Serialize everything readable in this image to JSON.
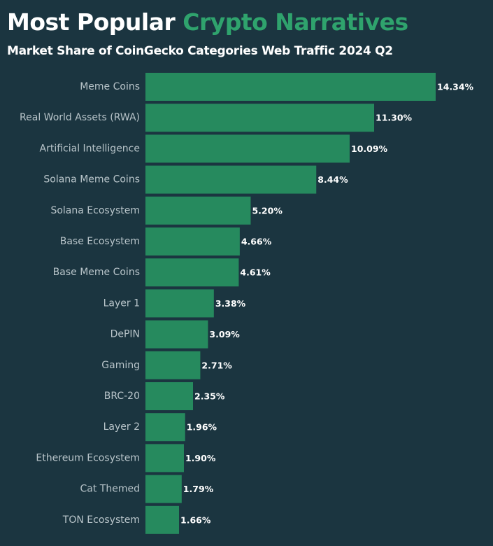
{
  "title": {
    "part1": "Most Popular",
    "part2": "Crypto Narratives"
  },
  "subtitle": "Market Share of CoinGecko Categories Web Traffic 2024 Q2",
  "colors": {
    "background": "#1b3540",
    "bar": "#268a5e",
    "title_accent": "#2fa36d",
    "category_label": "#b9c5ca",
    "value_label": "#ffffff"
  },
  "chart_data": {
    "type": "bar",
    "orientation": "horizontal",
    "title": "Most Popular Crypto Narratives",
    "subtitle": "Market Share of CoinGecko Categories Web Traffic 2024 Q2",
    "categories": [
      "Meme Coins",
      "Real World Assets (RWA)",
      "Artificial Intelligence",
      "Solana Meme Coins",
      "Solana Ecosystem",
      "Base Ecosystem",
      "Base Meme Coins",
      "Layer 1",
      "DePIN",
      "Gaming",
      "BRC-20",
      "Layer 2",
      "Ethereum Ecosystem",
      "Cat Themed",
      "TON Ecosystem"
    ],
    "values": [
      14.34,
      11.3,
      10.09,
      8.44,
      5.2,
      4.66,
      4.61,
      3.38,
      3.09,
      2.71,
      2.35,
      1.96,
      1.9,
      1.79,
      1.66
    ],
    "value_labels": [
      "14.34%",
      "11.30%",
      "10.09%",
      "8.44%",
      "5.20%",
      "4.66%",
      "4.61%",
      "3.38%",
      "3.09%",
      "2.71%",
      "2.35%",
      "1.96%",
      "1.90%",
      "1.79%",
      "1.66%"
    ],
    "unit": "%",
    "xlim": [
      0,
      14.34
    ],
    "grid": false,
    "legend": "none"
  }
}
